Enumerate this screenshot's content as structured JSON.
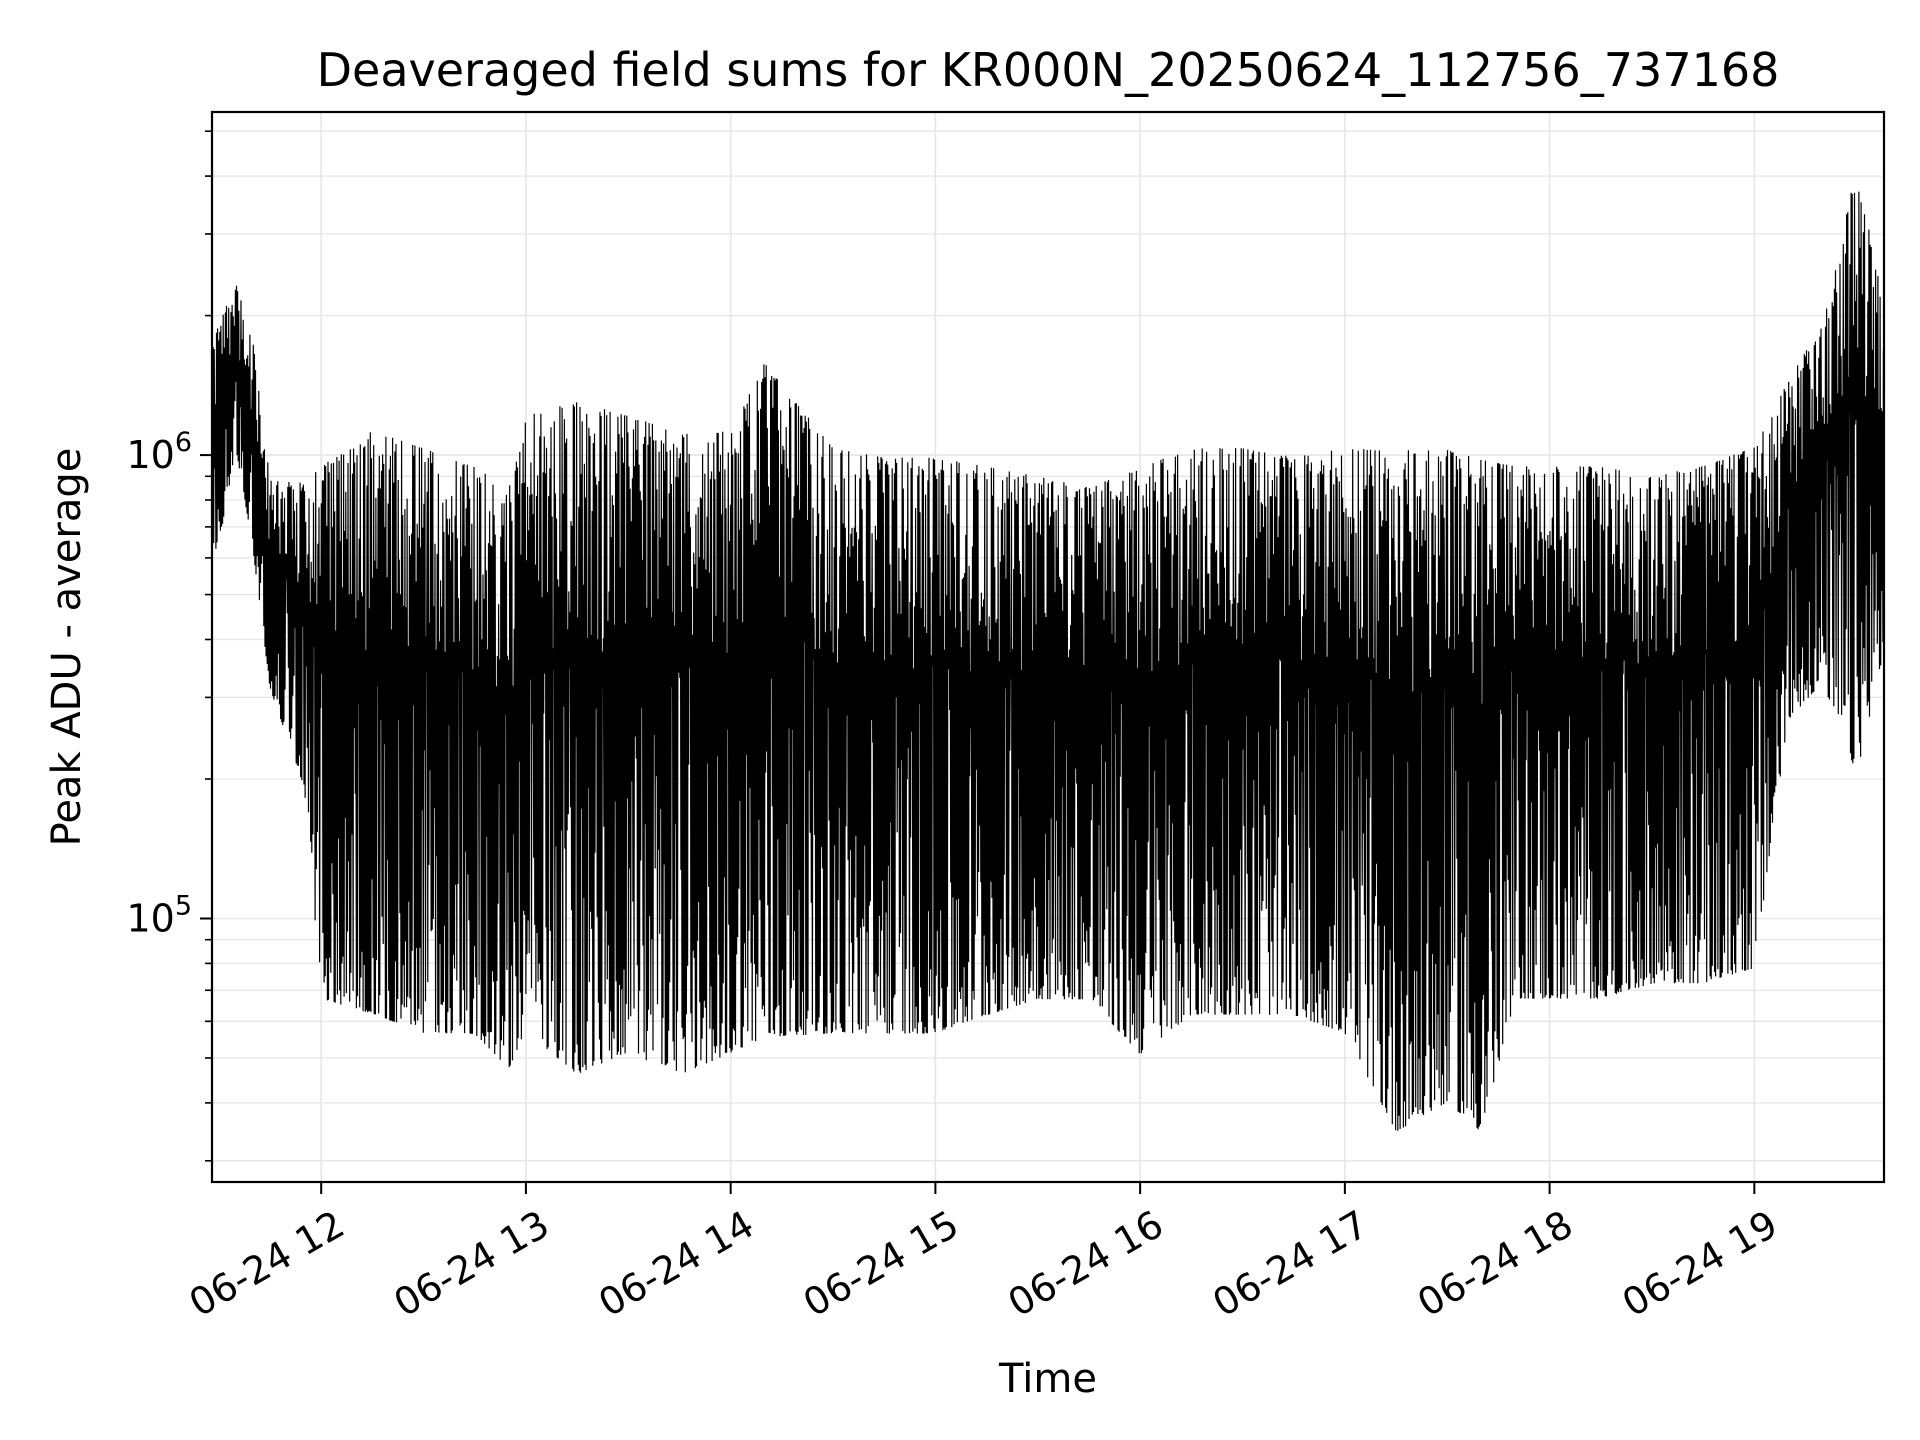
{
  "chart_data": {
    "type": "line",
    "title": "Deaveraged field sums for KR000N_20250624_112756_737168",
    "xlabel": "Time",
    "ylabel": "Peak ADU - average",
    "x_axis": {
      "kind": "time",
      "xlim": [
        "2025-06-24 11:28",
        "2025-06-24 19:38"
      ],
      "ticks": [
        {
          "value": "2025-06-24 12:00",
          "label": "06-24 12"
        },
        {
          "value": "2025-06-24 13:00",
          "label": "06-24 13"
        },
        {
          "value": "2025-06-24 14:00",
          "label": "06-24 14"
        },
        {
          "value": "2025-06-24 15:00",
          "label": "06-24 15"
        },
        {
          "value": "2025-06-24 16:00",
          "label": "06-24 16"
        },
        {
          "value": "2025-06-24 17:00",
          "label": "06-24 17"
        },
        {
          "value": "2025-06-24 18:00",
          "label": "06-24 18"
        },
        {
          "value": "2025-06-24 19:00",
          "label": "06-24 19"
        }
      ],
      "tick_label_rotation_deg": 30
    },
    "y_axis": {
      "scale": "log",
      "ylim": [
        27000,
        5500000
      ],
      "ticks": [
        {
          "value": 100000,
          "base": "10",
          "exponent": "5"
        },
        {
          "value": 1000000,
          "base": "10",
          "exponent": "6"
        }
      ]
    },
    "grid": true,
    "grid_color": "#e6e6e6",
    "line_color": "#000000",
    "background": "#ffffff",
    "series": [
      {
        "envelope": [
          {
            "t": "2025-06-24 11:28",
            "high": 1800000,
            "low": 500000
          },
          {
            "t": "2025-06-24 11:35",
            "high": 2400000,
            "low": 1000000
          },
          {
            "t": "2025-06-24 11:40",
            "high": 1800000,
            "low": 600000
          },
          {
            "t": "2025-06-24 11:45",
            "high": 900000,
            "low": 300000
          },
          {
            "t": "2025-06-24 11:55",
            "high": 900000,
            "low": 180000
          },
          {
            "t": "2025-06-24 12:00",
            "high": 1000000,
            "low": 60000
          },
          {
            "t": "2025-06-24 12:15",
            "high": 1200000,
            "low": 55000
          },
          {
            "t": "2025-06-24 12:30",
            "high": 1100000,
            "low": 50000
          },
          {
            "t": "2025-06-24 12:45",
            "high": 1000000,
            "low": 50000
          },
          {
            "t": "2025-06-24 12:55",
            "high": 900000,
            "low": 42000
          },
          {
            "t": "2025-06-24 13:00",
            "high": 1300000,
            "low": 50000
          },
          {
            "t": "2025-06-24 13:15",
            "high": 1400000,
            "low": 40000
          },
          {
            "t": "2025-06-24 13:30",
            "high": 1300000,
            "low": 45000
          },
          {
            "t": "2025-06-24 13:45",
            "high": 1200000,
            "low": 40000
          },
          {
            "t": "2025-06-24 14:00",
            "high": 1200000,
            "low": 45000
          },
          {
            "t": "2025-06-24 14:10",
            "high": 1700000,
            "low": 48000
          },
          {
            "t": "2025-06-24 14:30",
            "high": 1100000,
            "low": 50000
          },
          {
            "t": "2025-06-24 14:45",
            "high": 1050000,
            "low": 50000
          },
          {
            "t": "2025-06-24 15:00",
            "high": 1050000,
            "low": 50000
          },
          {
            "t": "2025-06-24 15:15",
            "high": 1000000,
            "low": 55000
          },
          {
            "t": "2025-06-24 15:30",
            "high": 950000,
            "low": 60000
          },
          {
            "t": "2025-06-24 15:45",
            "high": 900000,
            "low": 60000
          },
          {
            "t": "2025-06-24 16:00",
            "high": 1000000,
            "low": 45000
          },
          {
            "t": "2025-06-24 16:15",
            "high": 1100000,
            "low": 55000
          },
          {
            "t": "2025-06-24 16:30",
            "high": 1100000,
            "low": 55000
          },
          {
            "t": "2025-06-24 16:45",
            "high": 1050000,
            "low": 55000
          },
          {
            "t": "2025-06-24 17:00",
            "high": 1100000,
            "low": 50000
          },
          {
            "t": "2025-06-24 17:15",
            "high": 1100000,
            "low": 30000
          },
          {
            "t": "2025-06-24 17:30",
            "high": 1100000,
            "low": 35000
          },
          {
            "t": "2025-06-24 17:40",
            "high": 1050000,
            "low": 30000
          },
          {
            "t": "2025-06-24 17:50",
            "high": 1000000,
            "low": 60000
          },
          {
            "t": "2025-06-24 18:00",
            "high": 1000000,
            "low": 60000
          },
          {
            "t": "2025-06-24 18:15",
            "high": 1000000,
            "low": 60000
          },
          {
            "t": "2025-06-24 18:30",
            "high": 950000,
            "low": 65000
          },
          {
            "t": "2025-06-24 18:45",
            "high": 1000000,
            "low": 65000
          },
          {
            "t": "2025-06-24 19:00",
            "high": 1100000,
            "low": 70000
          },
          {
            "t": "2025-06-24 19:10",
            "high": 1500000,
            "low": 250000
          },
          {
            "t": "2025-06-24 19:20",
            "high": 2000000,
            "low": 300000
          },
          {
            "t": "2025-06-24 19:30",
            "high": 4500000,
            "low": 180000
          },
          {
            "t": "2025-06-24 19:38",
            "high": 2200000,
            "low": 350000
          }
        ]
      }
    ]
  }
}
